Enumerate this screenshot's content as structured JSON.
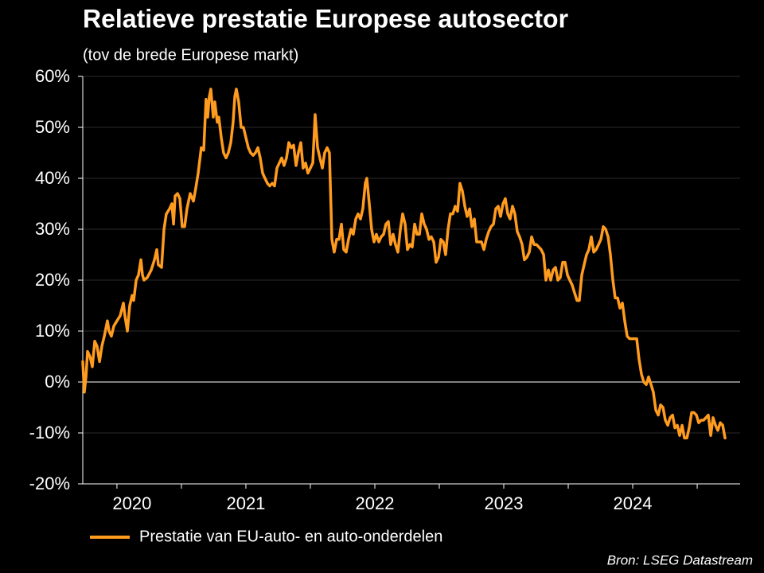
{
  "chart_data": {
    "type": "line",
    "title": "Relatieve prestatie Europese autosector",
    "subtitle": "(tov de brede Europese markt)",
    "source": "Bron: LSEG Datastream",
    "xlim": [
      2020.235,
      2025.333
    ],
    "xticks": [
      {
        "value": 2020.617,
        "label": "2020"
      },
      {
        "value": 2021.5,
        "label": "2021"
      },
      {
        "value": 2022.5,
        "label": "2022"
      },
      {
        "value": 2023.5,
        "label": "2023"
      },
      {
        "value": 2024.5,
        "label": "2024"
      }
    ],
    "xminorticks": [
      2020.5,
      2021,
      2021.5,
      2022,
      2022.5,
      2023,
      2023.5,
      2024,
      2024.5,
      2025
    ],
    "ylim": [
      -20,
      60
    ],
    "yticks": [
      {
        "value": -20,
        "label": "-20%"
      },
      {
        "value": -10,
        "label": "-10%"
      },
      {
        "value": 0,
        "label": "0%"
      },
      {
        "value": 10,
        "label": "10%"
      },
      {
        "value": 20,
        "label": "20%"
      },
      {
        "value": 30,
        "label": "30%"
      },
      {
        "value": 40,
        "label": "40%"
      },
      {
        "value": 50,
        "label": "50%"
      },
      {
        "value": 60,
        "label": "60%"
      }
    ],
    "grid": true,
    "legend": "bottom-left",
    "x": [
      2020.235,
      2020.247,
      2020.26,
      2020.272,
      2020.291,
      2020.309,
      2020.328,
      2020.346,
      2020.365,
      2020.383,
      2020.402,
      2020.426,
      2020.439,
      2020.457,
      2020.476,
      2020.5,
      2020.525,
      2020.55,
      2020.562,
      2020.581,
      2020.599,
      2020.618,
      2020.63,
      2020.649,
      2020.667,
      2020.686,
      2020.698,
      2020.71,
      2020.735,
      2020.766,
      2020.791,
      2020.809,
      2020.821,
      2020.846,
      2020.865,
      2020.883,
      2020.908,
      2020.926,
      2020.939,
      2020.951,
      2020.97,
      2020.988,
      2021.006,
      2021.025,
      2021.043,
      2021.068,
      2021.093,
      2021.111,
      2021.13,
      2021.154,
      2021.173,
      2021.191,
      2021.204,
      2021.216,
      2021.228,
      2021.247,
      2021.259,
      2021.278,
      2021.29,
      2021.309,
      2021.327,
      2021.346,
      2021.364,
      2021.383,
      2021.401,
      2021.414,
      2021.426,
      2021.444,
      2021.463,
      2021.481,
      2021.5,
      2021.519,
      2021.537,
      2021.556,
      2021.574,
      2021.593,
      2021.611,
      2021.63,
      2021.648,
      2021.667,
      2021.685,
      2021.704,
      2021.722,
      2021.741,
      2021.759,
      2021.778,
      2021.796,
      2021.815,
      2021.833,
      2021.852,
      2021.87,
      2021.889,
      2021.907,
      2021.926,
      2021.944,
      2021.963,
      2021.981,
      2022.0,
      2022.019,
      2022.037,
      2022.056,
      2022.074,
      2022.093,
      2022.111,
      2022.13,
      2022.148,
      2022.167,
      2022.185,
      2022.204,
      2022.222,
      2022.241,
      2022.259,
      2022.278,
      2022.296,
      2022.315,
      2022.333,
      2022.352,
      2022.37,
      2022.389,
      2022.407,
      2022.426,
      2022.438,
      2022.457,
      2022.475,
      2022.494,
      2022.512,
      2022.531,
      2022.549,
      2022.568,
      2022.586,
      2022.605,
      2022.623,
      2022.642,
      2022.66,
      2022.679,
      2022.698,
      2022.716,
      2022.735,
      2022.753,
      2022.772,
      2022.79,
      2022.809,
      2022.827,
      2022.846,
      2022.864,
      2022.883,
      2022.901,
      2022.92,
      2022.938,
      2022.957,
      2022.975,
      2022.994,
      2023.012,
      2023.031,
      2023.049,
      2023.068,
      2023.086,
      2023.105,
      2023.123,
      2023.142,
      2023.16,
      2023.179,
      2023.198,
      2023.216,
      2023.235,
      2023.253,
      2023.272,
      2023.29,
      2023.309,
      2023.327,
      2023.346,
      2023.364,
      2023.383,
      2023.401,
      2023.42,
      2023.438,
      2023.457,
      2023.475,
      2023.494,
      2023.512,
      2023.531,
      2023.549,
      2023.568,
      2023.586,
      2023.605,
      2023.623,
      2023.642,
      2023.66,
      2023.679,
      2023.698,
      2023.716,
      2023.735,
      2023.753,
      2023.772,
      2023.79,
      2023.809,
      2023.827,
      2023.846,
      2023.864,
      2023.883,
      2023.901,
      2023.92,
      2023.938,
      2023.957,
      2023.975,
      2023.994,
      2024.012,
      2024.031,
      2024.049,
      2024.068,
      2024.086,
      2024.105,
      2024.123,
      2024.142,
      2024.16,
      2024.179,
      2024.198,
      2024.216,
      2024.235,
      2024.253,
      2024.272,
      2024.29,
      2024.309,
      2024.327,
      2024.346,
      2024.364,
      2024.383,
      2024.401,
      2024.42,
      2024.438,
      2024.457,
      2024.475,
      2024.494,
      2024.512,
      2024.531,
      2024.549,
      2024.568,
      2024.586,
      2024.605,
      2024.623,
      2024.642,
      2024.66,
      2024.679,
      2024.698,
      2024.716,
      2024.735,
      2024.753,
      2024.772,
      2024.79,
      2024.809,
      2024.827,
      2024.846,
      2024.864,
      2024.883,
      2024.901,
      2024.92,
      2024.938,
      2024.957,
      2024.975,
      2024.994,
      2025.012,
      2025.031,
      2025.049,
      2025.068,
      2025.086,
      2025.105,
      2025.123,
      2025.142,
      2025.16,
      2025.179,
      2025.198,
      2025.216
    ],
    "series": [
      {
        "name": "Prestatie van EU-auto- en auto-onderdelen",
        "color": "#ff9b1e",
        "values": [
          4,
          -2,
          1,
          6,
          5,
          3,
          8,
          7,
          4,
          7,
          9,
          12,
          10,
          9,
          11,
          12,
          13,
          15.5,
          13,
          10,
          15,
          17,
          16,
          20,
          21,
          24,
          21,
          20,
          20.5,
          22,
          24,
          26,
          23,
          22.5,
          30,
          33,
          34,
          35,
          31,
          36.5,
          37,
          36,
          30.5,
          30.5,
          34,
          37,
          35.5,
          38,
          41,
          46,
          45.5,
          55.5,
          52,
          56,
          57.5,
          52,
          55,
          51,
          52,
          48,
          45,
          44,
          45,
          47,
          51,
          56,
          57.5,
          55,
          50,
          50,
          48,
          46,
          45,
          44.5,
          45,
          46,
          44,
          41,
          40,
          39,
          38.5,
          39,
          38.5,
          42,
          43,
          44,
          42.5,
          44,
          47,
          46,
          46.5,
          42.5,
          45,
          47,
          42,
          43,
          41,
          42,
          43,
          52.5,
          46,
          44,
          42,
          45,
          46,
          45,
          28,
          25.5,
          28,
          28,
          31,
          26,
          25.5,
          28,
          30,
          29,
          32,
          33,
          32,
          34,
          39,
          40,
          35,
          30,
          27.5,
          29,
          27.5,
          28.5,
          29,
          31,
          31.5,
          27,
          29,
          27,
          25.5,
          30,
          33,
          31,
          26,
          27,
          26.5,
          31,
          29,
          29,
          33,
          31,
          30,
          28,
          28.5,
          27.5,
          23.5,
          24.5,
          28,
          27.5,
          25,
          30,
          33,
          33,
          34.5,
          33.5,
          39,
          37.5,
          34.5,
          32.5,
          34,
          30.5,
          32,
          27.5,
          27.5,
          27.5,
          26,
          28,
          29.5,
          30.5,
          31,
          34,
          34.5,
          32.5,
          35,
          36,
          33,
          32,
          34.5,
          33,
          29.5,
          28.5,
          27,
          24,
          24.5,
          25.5,
          28.5,
          27,
          27,
          26.5,
          26,
          25,
          20,
          22,
          20,
          22,
          22.5,
          20,
          20.5,
          23.5,
          23.5,
          21,
          20,
          19,
          17.5,
          16,
          16,
          21,
          23,
          25,
          26,
          28.5,
          25.5,
          26,
          27,
          28,
          30.5,
          30,
          28.5,
          25,
          20,
          16.5,
          16.5,
          14.5,
          15.5,
          12,
          9,
          8.5,
          8.5,
          8.5,
          8.5,
          4.5,
          1.5,
          0,
          -0.5,
          1,
          -0.5,
          -2,
          -5.5,
          -6.5,
          -4.5,
          -5,
          -7.5,
          -8.5,
          -7,
          -6.5,
          -9,
          -8.5,
          -10.5,
          -8.5,
          -11,
          -11,
          -9,
          -6,
          -6,
          -6.5,
          -8,
          -7.5,
          -7.5,
          -7,
          -6.5,
          -10.5,
          -7,
          -8.5,
          -9.5,
          -8,
          -8.5,
          -11
        ]
      }
    ]
  }
}
